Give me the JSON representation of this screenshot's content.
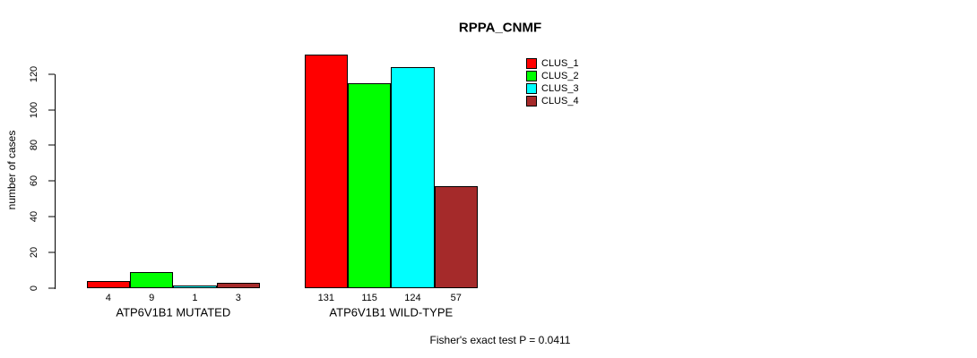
{
  "chart_data": {
    "type": "bar",
    "title": "RPPA_CNMF",
    "ylabel": "number of cases",
    "xlabel": "",
    "ylim": [
      0,
      131
    ],
    "yticks": [
      0,
      20,
      40,
      60,
      80,
      100,
      120
    ],
    "categories": [
      "ATP6V1B1 MUTATED",
      "ATP6V1B1 WILD-TYPE"
    ],
    "series": [
      {
        "name": "CLUS_1",
        "color": "#FF0000",
        "values": [
          4,
          131
        ]
      },
      {
        "name": "CLUS_2",
        "color": "#00FF00",
        "values": [
          9,
          115
        ]
      },
      {
        "name": "CLUS_3",
        "color": "#00FFFF",
        "values": [
          1,
          124
        ]
      },
      {
        "name": "CLUS_4",
        "color": "#A52A2A",
        "values": [
          3,
          57
        ]
      }
    ],
    "bar_value_labels": [
      [
        "4",
        "9",
        "1",
        "3"
      ],
      [
        "131",
        "115",
        "124",
        "57"
      ]
    ],
    "legend_position": "right-of-plot-top",
    "grid": false,
    "annotation": "Fisher's exact test P = 0.0411",
    "colors": {
      "background": "#FFFFFF",
      "axis": "#000000",
      "bar_border": "#000000"
    }
  }
}
